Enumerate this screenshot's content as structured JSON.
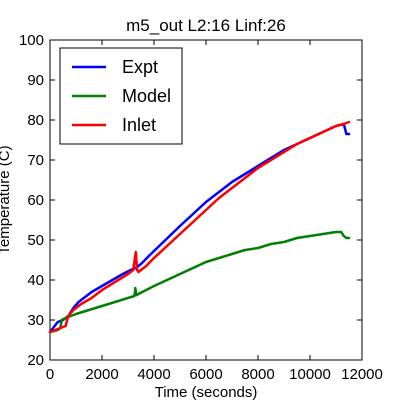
{
  "chart_data": {
    "type": "line",
    "title": "m5_out L2:16 Linf:26",
    "xlabel": "Time (seconds)",
    "ylabel": "Temperature (C)",
    "xlim": [
      0,
      12000
    ],
    "ylim": [
      20,
      100
    ],
    "xticks": [
      0,
      2000,
      4000,
      6000,
      8000,
      10000,
      12000
    ],
    "yticks": [
      20,
      30,
      40,
      50,
      60,
      70,
      80,
      90,
      100
    ],
    "grid": false,
    "legend_position": "top-left",
    "series": [
      {
        "name": "Expt",
        "color": "#0000ff",
        "x": [
          0,
          300,
          500,
          700,
          900,
          1100,
          1300,
          1600,
          2000,
          2400,
          2800,
          3100,
          3300,
          3500,
          3800,
          4200,
          4600,
          5000,
          5500,
          6000,
          6500,
          7000,
          7500,
          8000,
          8500,
          9000,
          9500,
          10000,
          10500,
          11000,
          11300,
          11400,
          11500
        ],
        "y": [
          27,
          29.5,
          30,
          31,
          33,
          34.5,
          35.5,
          37,
          38.5,
          40,
          41.5,
          42.5,
          43,
          44,
          46,
          48.5,
          51,
          53.5,
          56.5,
          59.5,
          62,
          64.5,
          66.5,
          68.5,
          70.5,
          72.5,
          74,
          75.5,
          77,
          78.5,
          79,
          76.5,
          76.5
        ]
      },
      {
        "name": "Model",
        "color": "#008000",
        "x": [
          0,
          300,
          400,
          450,
          600,
          800,
          1000,
          1500,
          2000,
          2500,
          3000,
          3250,
          3280,
          3320,
          3400,
          3700,
          4000,
          4500,
          5000,
          5500,
          6000,
          6500,
          7000,
          7500,
          8000,
          8500,
          9000,
          9500,
          10000,
          10500,
          11000,
          11200,
          11300,
          11400,
          11500
        ],
        "y": [
          27,
          27.5,
          28,
          30,
          30.5,
          31,
          31.5,
          32.5,
          33.5,
          34.5,
          35.5,
          36,
          38,
          36.2,
          36.5,
          37.5,
          38.5,
          40,
          41.5,
          43,
          44.5,
          45.5,
          46.5,
          47.5,
          48,
          49,
          49.5,
          50.5,
          51,
          51.5,
          52,
          52,
          51,
          50.5,
          50.5
        ]
      },
      {
        "name": "Inlet",
        "color": "#ff0000",
        "x": [
          0,
          200,
          400,
          600,
          700,
          900,
          1200,
          1600,
          2000,
          2500,
          3000,
          3200,
          3300,
          3350,
          3400,
          3500,
          3700,
          4000,
          4500,
          5000,
          5500,
          6000,
          6500,
          7000,
          7500,
          8000,
          8500,
          9000,
          9500,
          10000,
          10500,
          11000,
          11300,
          11500
        ],
        "y": [
          27,
          27.5,
          28,
          28.5,
          31,
          32.5,
          34,
          35.5,
          37.5,
          39.5,
          41.5,
          42.5,
          47,
          42.5,
          42,
          42.5,
          43.5,
          45.5,
          48.5,
          51.5,
          54.5,
          57.5,
          60.5,
          63,
          65.5,
          68,
          70,
          72,
          74,
          75.5,
          77,
          78.5,
          79,
          79.5
        ]
      }
    ]
  }
}
